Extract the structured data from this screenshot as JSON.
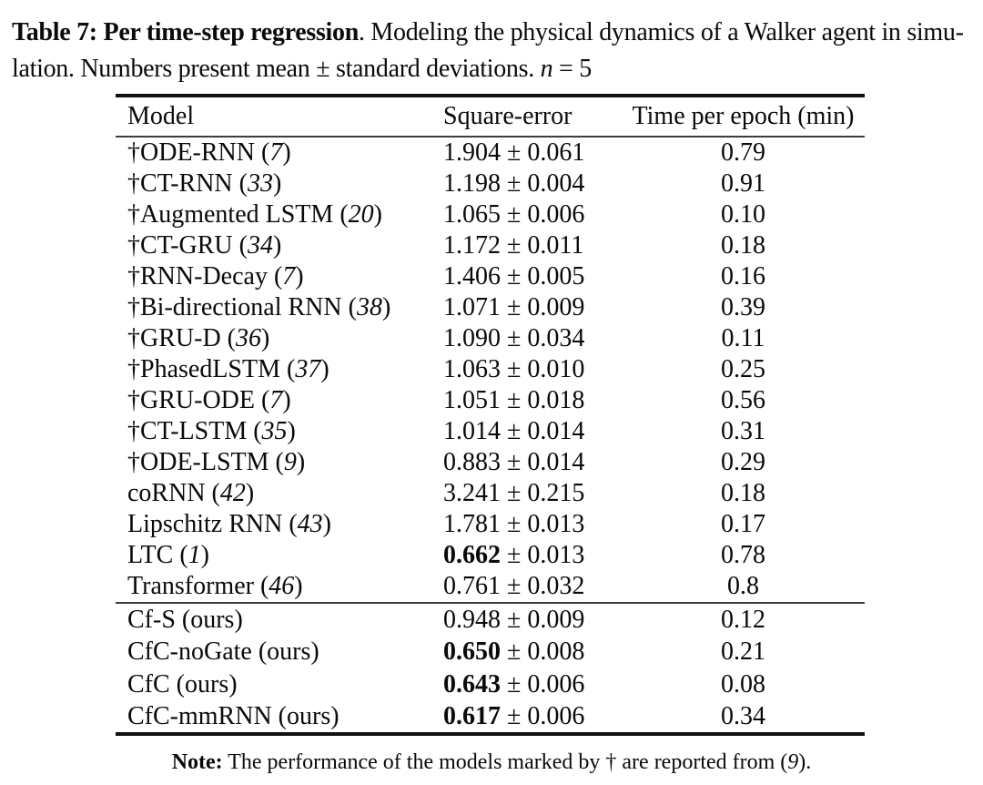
{
  "caption": {
    "bold_part": "Table 7: Per time-step regression",
    "line1_rest": ". Modeling the physical dynamics of a Walker agent in simu-",
    "line2_text": "lation. Numbers present mean ± standard deviations. ",
    "math_var": "n",
    "math_rest": " = 5"
  },
  "table": {
    "columns": [
      "Model",
      "Square-error",
      "Time per epoch (min)"
    ],
    "pm": " ± ",
    "rows1": [
      {
        "name": "†ODE-RNN",
        "open": " (",
        "cite": "7",
        "close": ")",
        "mean": "1.904",
        "std": "0.061",
        "bold_mean": false,
        "time": "0.79"
      },
      {
        "name": "†CT-RNN",
        "open": " (",
        "cite": "33",
        "close": ")",
        "mean": "1.198",
        "std": "0.004",
        "bold_mean": false,
        "time": "0.91"
      },
      {
        "name": "†Augmented LSTM",
        "open": " (",
        "cite": "20",
        "close": ")",
        "mean": "1.065",
        "std": "0.006",
        "bold_mean": false,
        "time": "0.10"
      },
      {
        "name": "†CT-GRU",
        "open": " (",
        "cite": "34",
        "close": ")",
        "mean": "1.172",
        "std": "0.011",
        "bold_mean": false,
        "time": "0.18"
      },
      {
        "name": "†RNN-Decay",
        "open": " (",
        "cite": "7",
        "close": ")",
        "mean": "1.406",
        "std": "0.005",
        "bold_mean": false,
        "time": "0.16"
      },
      {
        "name": "†Bi-directional RNN",
        "open": " (",
        "cite": "38",
        "close": ")",
        "mean": "1.071",
        "std": "0.009",
        "bold_mean": false,
        "time": "0.39"
      },
      {
        "name": "†GRU-D",
        "open": " (",
        "cite": "36",
        "close": ")",
        "mean": "1.090",
        "std": "0.034",
        "bold_mean": false,
        "time": "0.11"
      },
      {
        "name": "†PhasedLSTM",
        "open": " (",
        "cite": "37",
        "close": ")",
        "mean": "1.063",
        "std": "0.010",
        "bold_mean": false,
        "time": "0.25"
      },
      {
        "name": "†GRU-ODE",
        "open": " (",
        "cite": "7",
        "close": ")",
        "mean": "1.051",
        "std": "0.018",
        "bold_mean": false,
        "time": "0.56"
      },
      {
        "name": "†CT-LSTM",
        "open": " (",
        "cite": "35",
        "close": ")",
        "mean": "1.014",
        "std": "0.014",
        "bold_mean": false,
        "time": "0.31"
      },
      {
        "name": "†ODE-LSTM",
        "open": " (",
        "cite": "9",
        "close": ")",
        "mean": "0.883",
        "std": "0.014",
        "bold_mean": false,
        "time": "0.29"
      },
      {
        "name": "coRNN",
        "open": " (",
        "cite": "42",
        "close": ")",
        "mean": "3.241",
        "std": "0.215",
        "bold_mean": false,
        "time": "0.18"
      },
      {
        "name": "Lipschitz RNN",
        "open": " (",
        "cite": "43",
        "close": ")",
        "mean": "1.781",
        "std": "0.013",
        "bold_mean": false,
        "time": "0.17"
      },
      {
        "name": "LTC",
        "open": " (",
        "cite": "1",
        "close": ")",
        "mean": "0.662",
        "std": "0.013",
        "bold_mean": true,
        "time": "0.78"
      },
      {
        "name": "Transformer",
        "open": " (",
        "cite": "46",
        "close": ")",
        "mean": "0.761",
        "std": "0.032",
        "bold_mean": false,
        "time": "0.8"
      }
    ],
    "rows2": [
      {
        "name": "Cf-S (ours)",
        "open": "",
        "cite": "",
        "close": "",
        "mean": "0.948",
        "std": "0.009",
        "bold_mean": false,
        "time": "0.12"
      },
      {
        "name": "CfC-noGate (ours)",
        "open": "",
        "cite": "",
        "close": "",
        "mean": "0.650",
        "std": "0.008",
        "bold_mean": true,
        "time": "0.21"
      },
      {
        "name": "CfC (ours)",
        "open": "",
        "cite": "",
        "close": "",
        "mean": "0.643",
        "std": "0.006",
        "bold_mean": true,
        "time": "0.08"
      },
      {
        "name": "CfC-mmRNN (ours)",
        "open": "",
        "cite": "",
        "close": "",
        "mean": "0.617",
        "std": "0.006",
        "bold_mean": true,
        "time": "0.34"
      }
    ]
  },
  "note": {
    "label": "Note:",
    "text1": " The performance of the models marked by † are reported from (",
    "cite": "9",
    "close": ")."
  }
}
